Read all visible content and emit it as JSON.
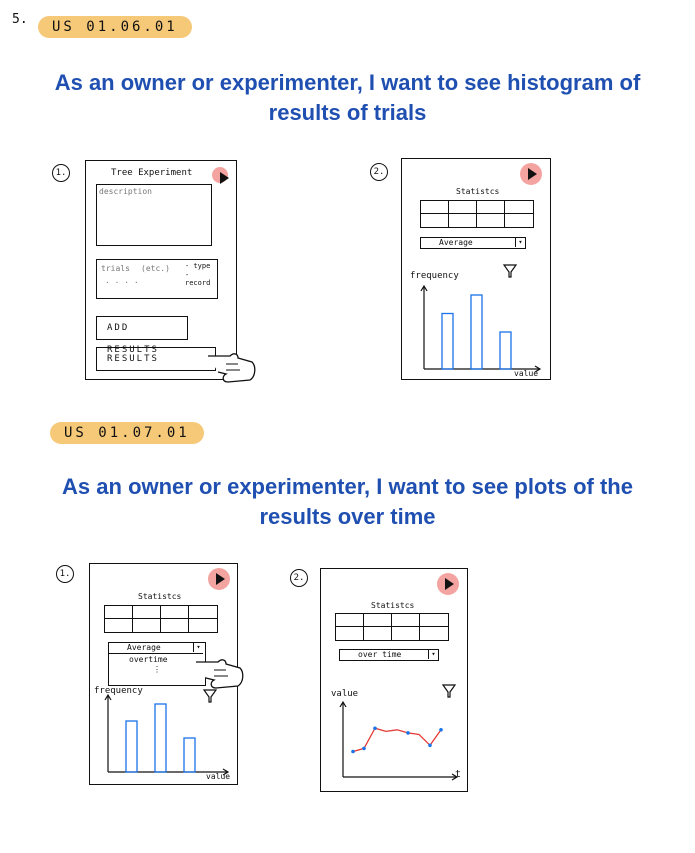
{
  "story_number": "5.",
  "section1": {
    "tag": "US 01.06.01",
    "heading": "As an owner or experimenter, I want to see histogram of results of trials",
    "mock1": {
      "step": "1.",
      "title": "Tree Experiment",
      "description_placeholder": "description",
      "trials_label": "trials",
      "trials_detail": "(etc.)",
      "trials_type": "- type",
      "trials_record": "- record",
      "trials_dots": "· · · ·",
      "add_results_button": "ADD RESULTS",
      "results_button": "RESULTS"
    },
    "mock2": {
      "step": "2.",
      "statistics_label": "Statistcs",
      "dropdown_value": "Average",
      "y_axis_label": "frequency",
      "x_axis_label": "value",
      "histogram_values": [
        3,
        4,
        2
      ]
    }
  },
  "section2": {
    "tag": "US 01.07.01",
    "heading": "As an owner or experimenter, I want to see plots of the results over time",
    "mock1": {
      "step": "1.",
      "statistics_label": "Statistcs",
      "dropdown_value": "Average",
      "dropdown_option": "overtime",
      "dropdown_more": "⋮",
      "y_axis_label": "frequency",
      "x_axis_label": "value",
      "histogram_values": [
        3,
        4,
        2
      ]
    },
    "mock2": {
      "step": "2.",
      "statistics_label": "Statistcs",
      "dropdown_value": "over time",
      "y_axis_label": "value",
      "x_axis_label": "t",
      "series": [
        1.0,
        1.2,
        2.5,
        2.3,
        2.4,
        2.2,
        2.1,
        1.4,
        2.4
      ]
    }
  },
  "colors": {
    "heading": "#1f4fb0",
    "tag": "#f6c979",
    "play_button": "#f4a4a0",
    "bars": "#1a73e8",
    "line": "#e53935",
    "points": "#1a73e8"
  }
}
